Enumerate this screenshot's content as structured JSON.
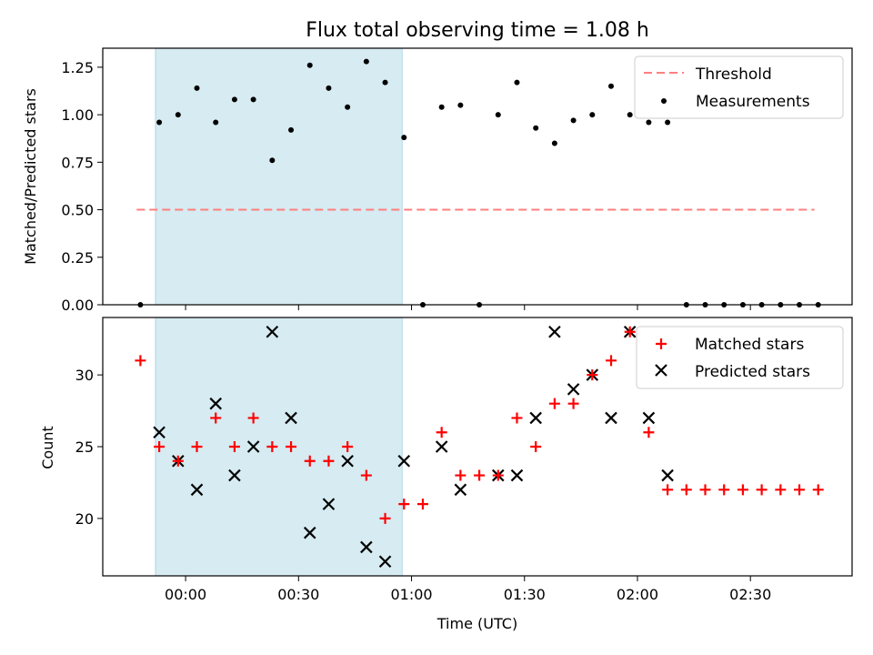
{
  "chart_data": [
    {
      "type": "scatter",
      "title": "Flux total observing time = 1.08 h",
      "ylabel": "Matched/Predicted stars",
      "ylim": [
        0,
        1.35
      ],
      "yticks": [
        "0.00",
        "0.25",
        "0.50",
        "0.75",
        "1.00",
        "1.25"
      ],
      "xticks_shown": false,
      "shaded_region_minutes": [
        -8,
        57.5
      ],
      "threshold": {
        "name": "Threshold",
        "y": 0.5,
        "x_range": [
          -13,
          167
        ],
        "color": "#ff7f7f"
      },
      "series": [
        {
          "name": "Measurements",
          "color": "#000000",
          "marker": "dot",
          "points": [
            [
              -12,
              0
            ],
            [
              -7,
              0.96
            ],
            [
              -2,
              1.0
            ],
            [
              3,
              1.14
            ],
            [
              8,
              0.96
            ],
            [
              13,
              1.08
            ],
            [
              18,
              1.08
            ],
            [
              23,
              0.76
            ],
            [
              28,
              0.92
            ],
            [
              33,
              1.26
            ],
            [
              38,
              1.14
            ],
            [
              43,
              1.04
            ],
            [
              48,
              1.28
            ],
            [
              53,
              1.17
            ],
            [
              58,
              0.88
            ],
            [
              63,
              0
            ],
            [
              68,
              1.04
            ],
            [
              73,
              1.05
            ],
            [
              78,
              0
            ],
            [
              83,
              1.0
            ],
            [
              88,
              1.17
            ],
            [
              93,
              0.93
            ],
            [
              98,
              0.85
            ],
            [
              103,
              0.97
            ],
            [
              108,
              1.0
            ],
            [
              113,
              1.15
            ],
            [
              118,
              1.0
            ],
            [
              123,
              0.96
            ],
            [
              128,
              0.96
            ],
            [
              133,
              0
            ],
            [
              138,
              0
            ],
            [
              143,
              0
            ],
            [
              148,
              0
            ],
            [
              153,
              0
            ],
            [
              158,
              0
            ],
            [
              163,
              0
            ],
            [
              168,
              0
            ]
          ]
        }
      ],
      "legend": "top-right"
    },
    {
      "type": "scatter",
      "xlabel": "Time (UTC)",
      "ylabel": "Count",
      "ylim": [
        16,
        34
      ],
      "yticks": [
        "20",
        "25",
        "30"
      ],
      "xlim_minutes": [
        -22,
        177
      ],
      "xticks": [
        {
          "minute": 0,
          "label": "00:00"
        },
        {
          "minute": 30,
          "label": "00:30"
        },
        {
          "minute": 60,
          "label": "01:00"
        },
        {
          "minute": 90,
          "label": "01:30"
        },
        {
          "minute": 120,
          "label": "02:00"
        },
        {
          "minute": 150,
          "label": "02:30"
        }
      ],
      "shaded_region_minutes": [
        -8,
        57.5
      ],
      "series": [
        {
          "name": "Matched stars",
          "color": "#ff0000",
          "marker": "plus",
          "points": [
            [
              -12,
              31
            ],
            [
              -7,
              25
            ],
            [
              -2,
              24
            ],
            [
              3,
              25
            ],
            [
              8,
              27
            ],
            [
              13,
              25
            ],
            [
              18,
              27
            ],
            [
              23,
              25
            ],
            [
              28,
              25
            ],
            [
              33,
              24
            ],
            [
              38,
              24
            ],
            [
              43,
              25
            ],
            [
              48,
              23
            ],
            [
              53,
              20
            ],
            [
              58,
              21
            ],
            [
              63,
              21
            ],
            [
              68,
              26
            ],
            [
              73,
              23
            ],
            [
              78,
              23
            ],
            [
              83,
              23
            ],
            [
              88,
              27
            ],
            [
              93,
              25
            ],
            [
              98,
              28
            ],
            [
              103,
              28
            ],
            [
              108,
              30
            ],
            [
              113,
              31
            ],
            [
              118,
              33
            ],
            [
              123,
              26
            ],
            [
              128,
              22
            ],
            [
              133,
              22
            ],
            [
              138,
              22
            ],
            [
              143,
              22
            ],
            [
              148,
              22
            ],
            [
              153,
              22
            ],
            [
              158,
              22
            ],
            [
              163,
              22
            ],
            [
              168,
              22
            ]
          ]
        },
        {
          "name": "Predicted stars",
          "color": "#000000",
          "marker": "x",
          "points": [
            [
              -7,
              26
            ],
            [
              -2,
              24
            ],
            [
              3,
              22
            ],
            [
              8,
              28
            ],
            [
              13,
              23
            ],
            [
              18,
              25
            ],
            [
              23,
              33
            ],
            [
              28,
              27
            ],
            [
              33,
              19
            ],
            [
              38,
              21
            ],
            [
              43,
              24
            ],
            [
              48,
              18
            ],
            [
              53,
              17
            ],
            [
              58,
              24
            ],
            [
              68,
              25
            ],
            [
              73,
              22
            ],
            [
              83,
              23
            ],
            [
              88,
              23
            ],
            [
              93,
              27
            ],
            [
              98,
              33
            ],
            [
              103,
              29
            ],
            [
              108,
              30
            ],
            [
              113,
              27
            ],
            [
              118,
              33
            ],
            [
              123,
              27
            ],
            [
              128,
              23
            ]
          ]
        }
      ],
      "legend": "top-right"
    }
  ]
}
